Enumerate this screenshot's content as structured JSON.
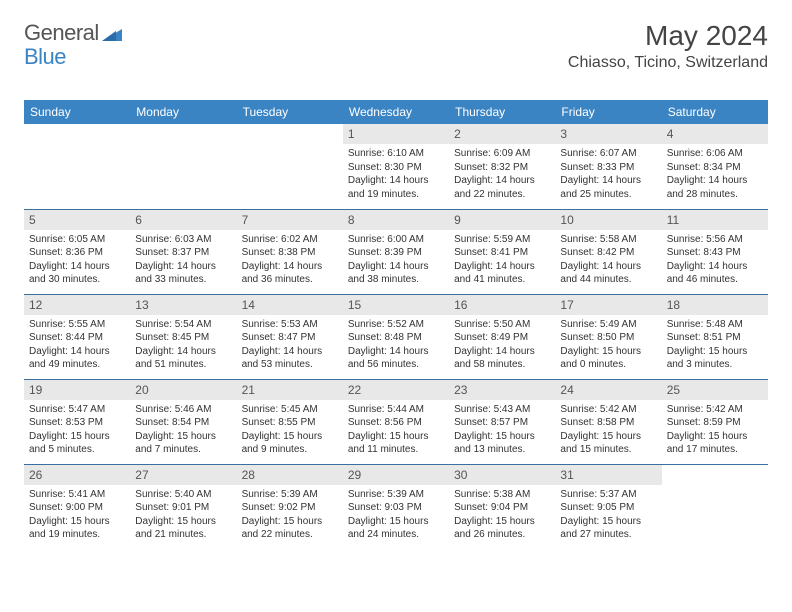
{
  "brand": {
    "general": "General",
    "blue": "Blue"
  },
  "title": "May 2024",
  "location": "Chiasso, Ticino, Switzerland",
  "colors": {
    "header_bg": "#3b84c4",
    "header_text": "#ffffff",
    "row_border": "#3b6fa0",
    "daynum_bg": "#e8e8e8",
    "text": "#333333",
    "title_text": "#444444",
    "logo_gray": "#555555",
    "logo_blue": "#3b84c4"
  },
  "weekdays": [
    "Sunday",
    "Monday",
    "Tuesday",
    "Wednesday",
    "Thursday",
    "Friday",
    "Saturday"
  ],
  "weeks": [
    [
      {
        "empty": true
      },
      {
        "empty": true
      },
      {
        "empty": true
      },
      {
        "day": "1",
        "sunrise": "Sunrise: 6:10 AM",
        "sunset": "Sunset: 8:30 PM",
        "daylight1": "Daylight: 14 hours",
        "daylight2": "and 19 minutes."
      },
      {
        "day": "2",
        "sunrise": "Sunrise: 6:09 AM",
        "sunset": "Sunset: 8:32 PM",
        "daylight1": "Daylight: 14 hours",
        "daylight2": "and 22 minutes."
      },
      {
        "day": "3",
        "sunrise": "Sunrise: 6:07 AM",
        "sunset": "Sunset: 8:33 PM",
        "daylight1": "Daylight: 14 hours",
        "daylight2": "and 25 minutes."
      },
      {
        "day": "4",
        "sunrise": "Sunrise: 6:06 AM",
        "sunset": "Sunset: 8:34 PM",
        "daylight1": "Daylight: 14 hours",
        "daylight2": "and 28 minutes."
      }
    ],
    [
      {
        "day": "5",
        "sunrise": "Sunrise: 6:05 AM",
        "sunset": "Sunset: 8:36 PM",
        "daylight1": "Daylight: 14 hours",
        "daylight2": "and 30 minutes."
      },
      {
        "day": "6",
        "sunrise": "Sunrise: 6:03 AM",
        "sunset": "Sunset: 8:37 PM",
        "daylight1": "Daylight: 14 hours",
        "daylight2": "and 33 minutes."
      },
      {
        "day": "7",
        "sunrise": "Sunrise: 6:02 AM",
        "sunset": "Sunset: 8:38 PM",
        "daylight1": "Daylight: 14 hours",
        "daylight2": "and 36 minutes."
      },
      {
        "day": "8",
        "sunrise": "Sunrise: 6:00 AM",
        "sunset": "Sunset: 8:39 PM",
        "daylight1": "Daylight: 14 hours",
        "daylight2": "and 38 minutes."
      },
      {
        "day": "9",
        "sunrise": "Sunrise: 5:59 AM",
        "sunset": "Sunset: 8:41 PM",
        "daylight1": "Daylight: 14 hours",
        "daylight2": "and 41 minutes."
      },
      {
        "day": "10",
        "sunrise": "Sunrise: 5:58 AM",
        "sunset": "Sunset: 8:42 PM",
        "daylight1": "Daylight: 14 hours",
        "daylight2": "and 44 minutes."
      },
      {
        "day": "11",
        "sunrise": "Sunrise: 5:56 AM",
        "sunset": "Sunset: 8:43 PM",
        "daylight1": "Daylight: 14 hours",
        "daylight2": "and 46 minutes."
      }
    ],
    [
      {
        "day": "12",
        "sunrise": "Sunrise: 5:55 AM",
        "sunset": "Sunset: 8:44 PM",
        "daylight1": "Daylight: 14 hours",
        "daylight2": "and 49 minutes."
      },
      {
        "day": "13",
        "sunrise": "Sunrise: 5:54 AM",
        "sunset": "Sunset: 8:45 PM",
        "daylight1": "Daylight: 14 hours",
        "daylight2": "and 51 minutes."
      },
      {
        "day": "14",
        "sunrise": "Sunrise: 5:53 AM",
        "sunset": "Sunset: 8:47 PM",
        "daylight1": "Daylight: 14 hours",
        "daylight2": "and 53 minutes."
      },
      {
        "day": "15",
        "sunrise": "Sunrise: 5:52 AM",
        "sunset": "Sunset: 8:48 PM",
        "daylight1": "Daylight: 14 hours",
        "daylight2": "and 56 minutes."
      },
      {
        "day": "16",
        "sunrise": "Sunrise: 5:50 AM",
        "sunset": "Sunset: 8:49 PM",
        "daylight1": "Daylight: 14 hours",
        "daylight2": "and 58 minutes."
      },
      {
        "day": "17",
        "sunrise": "Sunrise: 5:49 AM",
        "sunset": "Sunset: 8:50 PM",
        "daylight1": "Daylight: 15 hours",
        "daylight2": "and 0 minutes."
      },
      {
        "day": "18",
        "sunrise": "Sunrise: 5:48 AM",
        "sunset": "Sunset: 8:51 PM",
        "daylight1": "Daylight: 15 hours",
        "daylight2": "and 3 minutes."
      }
    ],
    [
      {
        "day": "19",
        "sunrise": "Sunrise: 5:47 AM",
        "sunset": "Sunset: 8:53 PM",
        "daylight1": "Daylight: 15 hours",
        "daylight2": "and 5 minutes."
      },
      {
        "day": "20",
        "sunrise": "Sunrise: 5:46 AM",
        "sunset": "Sunset: 8:54 PM",
        "daylight1": "Daylight: 15 hours",
        "daylight2": "and 7 minutes."
      },
      {
        "day": "21",
        "sunrise": "Sunrise: 5:45 AM",
        "sunset": "Sunset: 8:55 PM",
        "daylight1": "Daylight: 15 hours",
        "daylight2": "and 9 minutes."
      },
      {
        "day": "22",
        "sunrise": "Sunrise: 5:44 AM",
        "sunset": "Sunset: 8:56 PM",
        "daylight1": "Daylight: 15 hours",
        "daylight2": "and 11 minutes."
      },
      {
        "day": "23",
        "sunrise": "Sunrise: 5:43 AM",
        "sunset": "Sunset: 8:57 PM",
        "daylight1": "Daylight: 15 hours",
        "daylight2": "and 13 minutes."
      },
      {
        "day": "24",
        "sunrise": "Sunrise: 5:42 AM",
        "sunset": "Sunset: 8:58 PM",
        "daylight1": "Daylight: 15 hours",
        "daylight2": "and 15 minutes."
      },
      {
        "day": "25",
        "sunrise": "Sunrise: 5:42 AM",
        "sunset": "Sunset: 8:59 PM",
        "daylight1": "Daylight: 15 hours",
        "daylight2": "and 17 minutes."
      }
    ],
    [
      {
        "day": "26",
        "sunrise": "Sunrise: 5:41 AM",
        "sunset": "Sunset: 9:00 PM",
        "daylight1": "Daylight: 15 hours",
        "daylight2": "and 19 minutes."
      },
      {
        "day": "27",
        "sunrise": "Sunrise: 5:40 AM",
        "sunset": "Sunset: 9:01 PM",
        "daylight1": "Daylight: 15 hours",
        "daylight2": "and 21 minutes."
      },
      {
        "day": "28",
        "sunrise": "Sunrise: 5:39 AM",
        "sunset": "Sunset: 9:02 PM",
        "daylight1": "Daylight: 15 hours",
        "daylight2": "and 22 minutes."
      },
      {
        "day": "29",
        "sunrise": "Sunrise: 5:39 AM",
        "sunset": "Sunset: 9:03 PM",
        "daylight1": "Daylight: 15 hours",
        "daylight2": "and 24 minutes."
      },
      {
        "day": "30",
        "sunrise": "Sunrise: 5:38 AM",
        "sunset": "Sunset: 9:04 PM",
        "daylight1": "Daylight: 15 hours",
        "daylight2": "and 26 minutes."
      },
      {
        "day": "31",
        "sunrise": "Sunrise: 5:37 AM",
        "sunset": "Sunset: 9:05 PM",
        "daylight1": "Daylight: 15 hours",
        "daylight2": "and 27 minutes."
      },
      {
        "empty": true
      }
    ]
  ]
}
